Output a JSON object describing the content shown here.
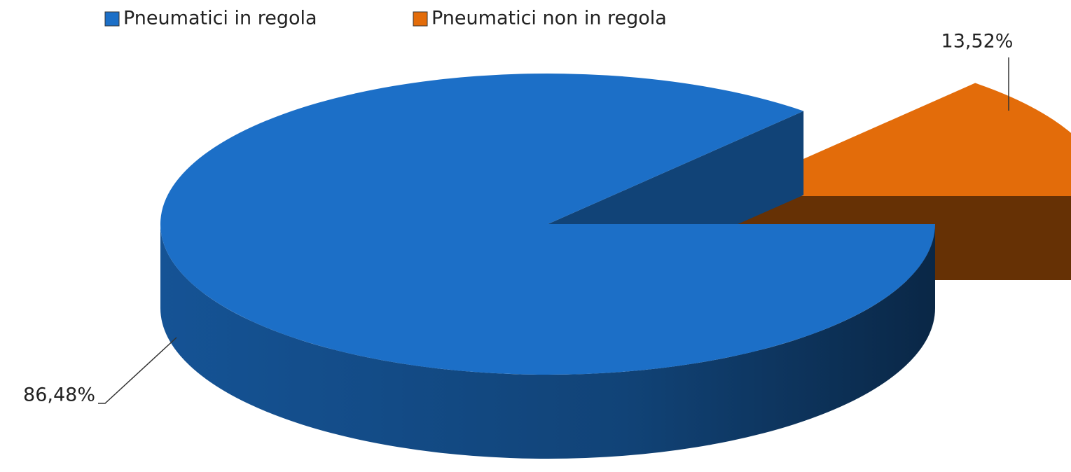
{
  "chart_data": {
    "type": "pie",
    "categories": [
      "Pneumatici in regola",
      "Pneumatici non in regola"
    ],
    "values": [
      86.48,
      13.52
    ],
    "value_labels": [
      "86,48%",
      "13,52%"
    ],
    "colors": [
      "#1c6fc7",
      "#e36c0a"
    ],
    "legend": "top"
  }
}
